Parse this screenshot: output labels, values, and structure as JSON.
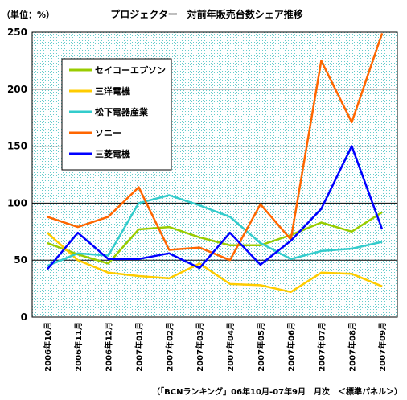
{
  "chart_data": {
    "type": "line",
    "title": "プロジェクター　対前年販売台数シェア推移",
    "unit_label": "（単位：%）",
    "source_note": "（「BCNランキング」06年10月-07年9月　月次　＜標準パネル＞）",
    "ylim": [
      0,
      250
    ],
    "yticks": [
      "0",
      "50",
      "100",
      "150",
      "200",
      "250"
    ],
    "grid": true,
    "legend_position": "top-left",
    "categories": [
      "2006年10月",
      "2006年11月",
      "2006年12月",
      "2007年01月",
      "2007年02月",
      "2007年03月",
      "2007年04月",
      "2007年05月",
      "2007年06月",
      "2007年07月",
      "2007年08月",
      "2007年09月"
    ],
    "series": [
      {
        "name": "セイコーエプソン",
        "color": "#99cc00",
        "values": [
          65,
          55,
          47,
          77,
          79,
          70,
          63,
          63,
          72,
          83,
          75,
          92
        ]
      },
      {
        "name": "三洋電機",
        "color": "#ffcc00",
        "values": [
          74,
          50,
          39,
          36,
          34,
          47,
          29,
          28,
          22,
          39,
          38,
          27
        ]
      },
      {
        "name": "松下電器産業",
        "color": "#33cccc",
        "values": [
          45,
          56,
          54,
          100,
          107,
          98,
          88,
          65,
          51,
          58,
          60,
          66
        ]
      },
      {
        "name": "ソニー",
        "color": "#ff6600",
        "values": [
          88,
          79,
          88,
          114,
          59,
          61,
          50,
          99,
          68,
          225,
          171,
          249
        ]
      },
      {
        "name": "三菱電機",
        "color": "#0000ff",
        "values": [
          42,
          74,
          51,
          51,
          56,
          43,
          74,
          46,
          67,
          95,
          150,
          77
        ]
      }
    ]
  }
}
